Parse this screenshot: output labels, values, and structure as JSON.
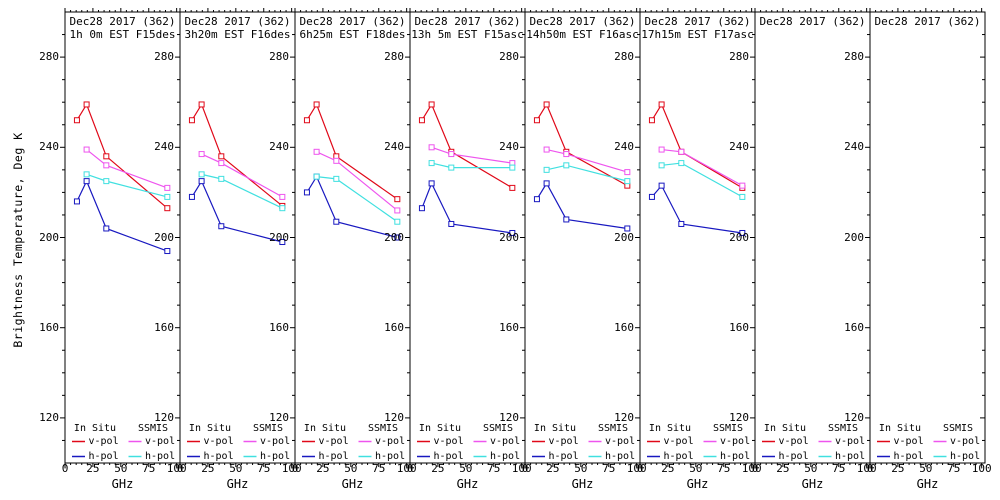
{
  "chart_data": {
    "type": "line",
    "ylabel": "Brightness Temperature, Deg K",
    "xlabel": "GHz",
    "ylim": [
      100,
      300
    ],
    "xlim": [
      0,
      103
    ],
    "yticks": [
      280,
      240,
      200,
      160,
      120
    ],
    "xticks": [
      0,
      25,
      50,
      75,
      100
    ],
    "grid": "off",
    "legend": {
      "col1_header": "In Situ",
      "col2_header": "SSMIS",
      "vpol_label": "v-pol",
      "hpol_label": "h-pol"
    },
    "colors": {
      "insitu_v": "#e00818",
      "insitu_h": "#1818c0",
      "ssmis_v": "#ee55ee",
      "ssmis_h": "#40e0e0",
      "axis": "#000000",
      "background": "#ffffff"
    },
    "insitu_freqs_ghz": [
      10.7,
      19.35,
      37.0,
      91.655
    ],
    "ssmis_freqs_ghz": [
      19.35,
      37.0,
      91.655
    ],
    "panels": [
      {
        "title": "Dec28 2017 (362)",
        "subtitle": "1h 0m EST F15des",
        "insitu_v": [
          252,
          259,
          236,
          213
        ],
        "insitu_h": [
          216,
          225,
          204,
          194
        ],
        "ssmis_v": [
          239,
          232,
          222
        ],
        "ssmis_h": [
          228,
          225,
          218
        ]
      },
      {
        "title": "Dec28 2017 (362)",
        "subtitle": "3h20m EST F16des",
        "insitu_v": [
          252,
          259,
          236,
          214
        ],
        "insitu_h": [
          218,
          225,
          205,
          198
        ],
        "ssmis_v": [
          237,
          233,
          218
        ],
        "ssmis_h": [
          228,
          226,
          213
        ]
      },
      {
        "title": "Dec28 2017 (362)",
        "subtitle": "6h25m EST F18des",
        "insitu_v": [
          252,
          259,
          236,
          217
        ],
        "insitu_h": [
          220,
          227,
          207,
          200
        ],
        "ssmis_v": [
          238,
          234,
          212
        ],
        "ssmis_h": [
          227,
          226,
          207
        ]
      },
      {
        "title": "Dec28 2017 (362)",
        "subtitle": "13h 5m EST F15asc",
        "insitu_v": [
          252,
          259,
          238,
          222
        ],
        "insitu_h": [
          213,
          224,
          206,
          202
        ],
        "ssmis_v": [
          240,
          237,
          233
        ],
        "ssmis_h": [
          233,
          231,
          231
        ]
      },
      {
        "title": "Dec28 2017 (362)",
        "subtitle": "14h50m EST F16asc",
        "insitu_v": [
          252,
          259,
          238,
          223
        ],
        "insitu_h": [
          217,
          224,
          208,
          204
        ],
        "ssmis_v": [
          239,
          237,
          229
        ],
        "ssmis_h": [
          230,
          232,
          225
        ]
      },
      {
        "title": "Dec28 2017 (362)",
        "subtitle": "17h15m EST F17asc",
        "insitu_v": [
          252,
          259,
          238,
          222
        ],
        "insitu_h": [
          218,
          223,
          206,
          202
        ],
        "ssmis_v": [
          239,
          238,
          223
        ],
        "ssmis_h": [
          232,
          233,
          218
        ]
      },
      {
        "title": "Dec28 2017 (362)",
        "subtitle": "",
        "insitu_v": [],
        "insitu_h": [],
        "ssmis_v": [],
        "ssmis_h": []
      },
      {
        "title": "Dec28 2017 (362)",
        "subtitle": "",
        "insitu_v": [],
        "insitu_h": [],
        "ssmis_v": [],
        "ssmis_h": []
      }
    ]
  }
}
